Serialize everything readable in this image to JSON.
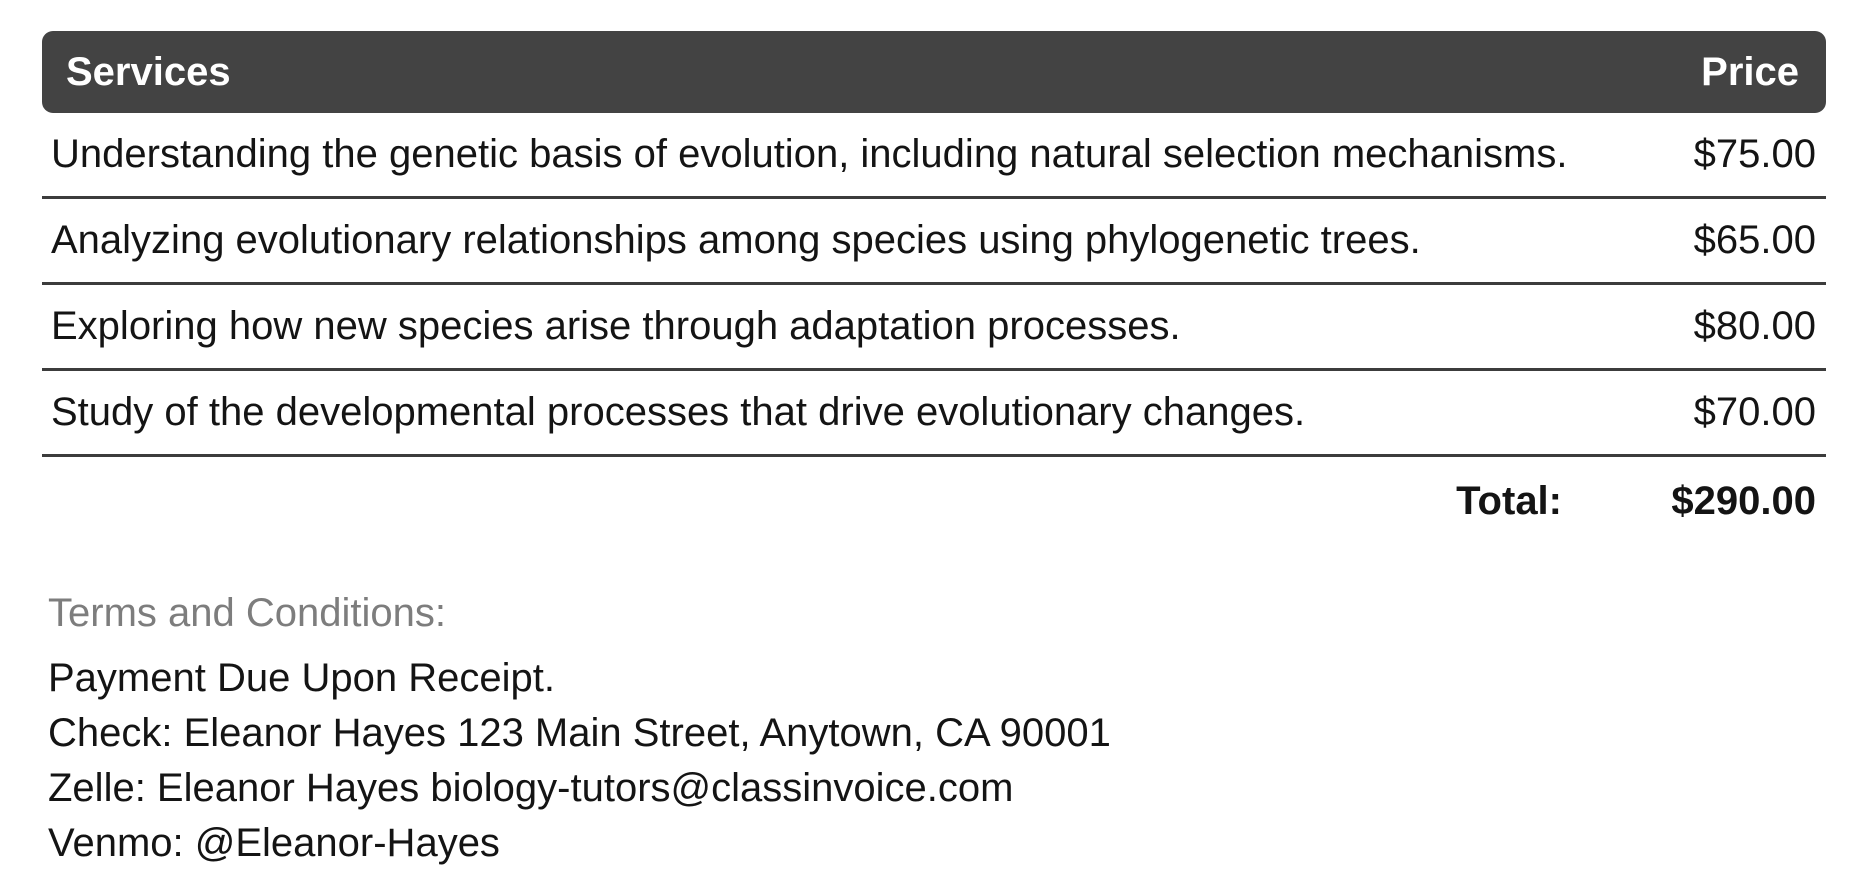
{
  "table": {
    "headers": {
      "services": "Services",
      "price": "Price"
    },
    "rows": [
      {
        "service": "Understanding the genetic basis of evolution, including natural selection mechanisms.",
        "price": "$75.00"
      },
      {
        "service": "Analyzing evolutionary relationships among species using phylogenetic trees.",
        "price": "$65.00"
      },
      {
        "service": "Exploring how new species arise through adaptation processes.",
        "price": "$80.00"
      },
      {
        "service": "Study of the developmental processes that drive evolutionary changes.",
        "price": "$70.00"
      }
    ],
    "total_label": "Total:",
    "total_value": "$290.00"
  },
  "terms": {
    "heading": "Terms and Conditions:",
    "lines": [
      "Payment Due Upon Receipt.",
      "Check: Eleanor Hayes 123 Main Street, Anytown, CA 90001",
      "Zelle: Eleanor Hayes biology-tutors@classinvoice.com",
      "Venmo: @Eleanor-Hayes"
    ]
  },
  "colors": {
    "header_background": "#434343",
    "header_text": "#ffffff",
    "body_text": "#141414",
    "row_separator": "#3c3c3c",
    "terms_heading_text": "#7d7d7d",
    "page_background": "#ffffff"
  }
}
